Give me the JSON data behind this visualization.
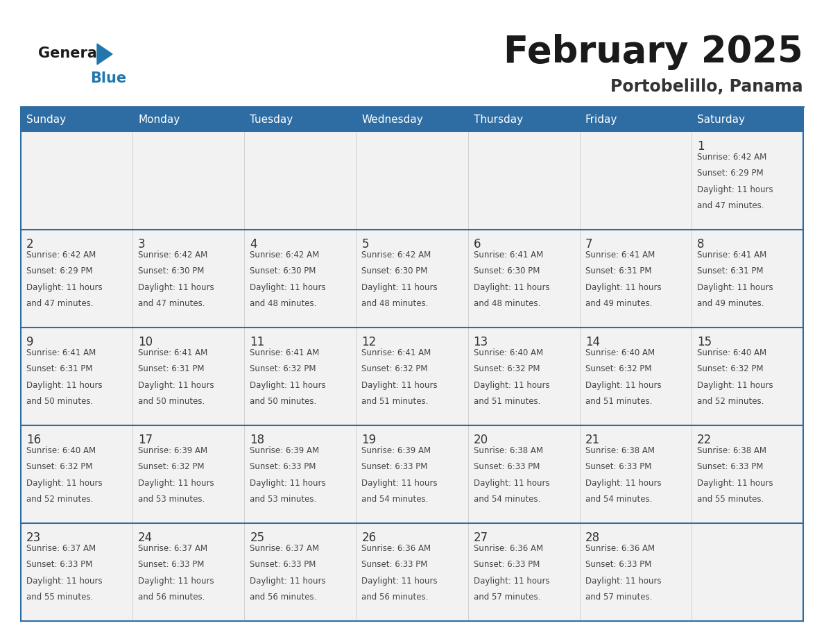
{
  "title": "February 2025",
  "subtitle": "Portobelillo, Panama",
  "days_of_week": [
    "Sunday",
    "Monday",
    "Tuesday",
    "Wednesday",
    "Thursday",
    "Friday",
    "Saturday"
  ],
  "header_bg_color": "#2E6DA4",
  "header_text_color": "#FFFFFF",
  "cell_bg_color": "#F2F2F2",
  "grid_line_color": "#2E6DA4",
  "row_divider_color": "#2E6DA4",
  "day_num_color": "#333333",
  "cell_text_color": "#444444",
  "title_color": "#1A1A1A",
  "subtitle_color": "#333333",
  "logo_general_color": "#1A1A1A",
  "logo_blue_color": "#2176AE",
  "weeks": [
    {
      "days": [
        {
          "day": null,
          "sunrise": null,
          "sunset": null,
          "daylight": null
        },
        {
          "day": null,
          "sunrise": null,
          "sunset": null,
          "daylight": null
        },
        {
          "day": null,
          "sunrise": null,
          "sunset": null,
          "daylight": null
        },
        {
          "day": null,
          "sunrise": null,
          "sunset": null,
          "daylight": null
        },
        {
          "day": null,
          "sunrise": null,
          "sunset": null,
          "daylight": null
        },
        {
          "day": null,
          "sunrise": null,
          "sunset": null,
          "daylight": null
        },
        {
          "day": 1,
          "sunrise": "6:42 AM",
          "sunset": "6:29 PM",
          "daylight": "11 hours and 47 minutes."
        }
      ]
    },
    {
      "days": [
        {
          "day": 2,
          "sunrise": "6:42 AM",
          "sunset": "6:29 PM",
          "daylight": "11 hours and 47 minutes."
        },
        {
          "day": 3,
          "sunrise": "6:42 AM",
          "sunset": "6:30 PM",
          "daylight": "11 hours and 47 minutes."
        },
        {
          "day": 4,
          "sunrise": "6:42 AM",
          "sunset": "6:30 PM",
          "daylight": "11 hours and 48 minutes."
        },
        {
          "day": 5,
          "sunrise": "6:42 AM",
          "sunset": "6:30 PM",
          "daylight": "11 hours and 48 minutes."
        },
        {
          "day": 6,
          "sunrise": "6:41 AM",
          "sunset": "6:30 PM",
          "daylight": "11 hours and 48 minutes."
        },
        {
          "day": 7,
          "sunrise": "6:41 AM",
          "sunset": "6:31 PM",
          "daylight": "11 hours and 49 minutes."
        },
        {
          "day": 8,
          "sunrise": "6:41 AM",
          "sunset": "6:31 PM",
          "daylight": "11 hours and 49 minutes."
        }
      ]
    },
    {
      "days": [
        {
          "day": 9,
          "sunrise": "6:41 AM",
          "sunset": "6:31 PM",
          "daylight": "11 hours and 50 minutes."
        },
        {
          "day": 10,
          "sunrise": "6:41 AM",
          "sunset": "6:31 PM",
          "daylight": "11 hours and 50 minutes."
        },
        {
          "day": 11,
          "sunrise": "6:41 AM",
          "sunset": "6:32 PM",
          "daylight": "11 hours and 50 minutes."
        },
        {
          "day": 12,
          "sunrise": "6:41 AM",
          "sunset": "6:32 PM",
          "daylight": "11 hours and 51 minutes."
        },
        {
          "day": 13,
          "sunrise": "6:40 AM",
          "sunset": "6:32 PM",
          "daylight": "11 hours and 51 minutes."
        },
        {
          "day": 14,
          "sunrise": "6:40 AM",
          "sunset": "6:32 PM",
          "daylight": "11 hours and 51 minutes."
        },
        {
          "day": 15,
          "sunrise": "6:40 AM",
          "sunset": "6:32 PM",
          "daylight": "11 hours and 52 minutes."
        }
      ]
    },
    {
      "days": [
        {
          "day": 16,
          "sunrise": "6:40 AM",
          "sunset": "6:32 PM",
          "daylight": "11 hours and 52 minutes."
        },
        {
          "day": 17,
          "sunrise": "6:39 AM",
          "sunset": "6:32 PM",
          "daylight": "11 hours and 53 minutes."
        },
        {
          "day": 18,
          "sunrise": "6:39 AM",
          "sunset": "6:33 PM",
          "daylight": "11 hours and 53 minutes."
        },
        {
          "day": 19,
          "sunrise": "6:39 AM",
          "sunset": "6:33 PM",
          "daylight": "11 hours and 54 minutes."
        },
        {
          "day": 20,
          "sunrise": "6:38 AM",
          "sunset": "6:33 PM",
          "daylight": "11 hours and 54 minutes."
        },
        {
          "day": 21,
          "sunrise": "6:38 AM",
          "sunset": "6:33 PM",
          "daylight": "11 hours and 54 minutes."
        },
        {
          "day": 22,
          "sunrise": "6:38 AM",
          "sunset": "6:33 PM",
          "daylight": "11 hours and 55 minutes."
        }
      ]
    },
    {
      "days": [
        {
          "day": 23,
          "sunrise": "6:37 AM",
          "sunset": "6:33 PM",
          "daylight": "11 hours and 55 minutes."
        },
        {
          "day": 24,
          "sunrise": "6:37 AM",
          "sunset": "6:33 PM",
          "daylight": "11 hours and 56 minutes."
        },
        {
          "day": 25,
          "sunrise": "6:37 AM",
          "sunset": "6:33 PM",
          "daylight": "11 hours and 56 minutes."
        },
        {
          "day": 26,
          "sunrise": "6:36 AM",
          "sunset": "6:33 PM",
          "daylight": "11 hours and 56 minutes."
        },
        {
          "day": 27,
          "sunrise": "6:36 AM",
          "sunset": "6:33 PM",
          "daylight": "11 hours and 57 minutes."
        },
        {
          "day": 28,
          "sunrise": "6:36 AM",
          "sunset": "6:33 PM",
          "daylight": "11 hours and 57 minutes."
        },
        {
          "day": null,
          "sunrise": null,
          "sunset": null,
          "daylight": null
        }
      ]
    }
  ]
}
